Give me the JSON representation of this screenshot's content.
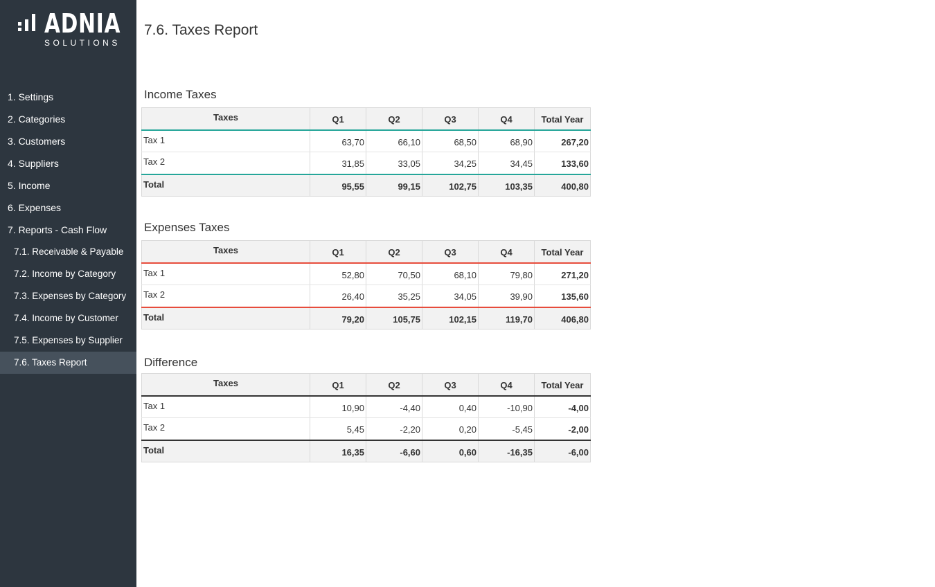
{
  "brand": {
    "name": "ADNIA",
    "subtitle": "SOLUTIONS"
  },
  "nav": [
    {
      "label": "1. Settings",
      "sub": false,
      "active": false
    },
    {
      "label": "2. Categories",
      "sub": false,
      "active": false
    },
    {
      "label": "3. Customers",
      "sub": false,
      "active": false
    },
    {
      "label": "4. Suppliers",
      "sub": false,
      "active": false
    },
    {
      "label": "5. Income",
      "sub": false,
      "active": false
    },
    {
      "label": "6. Expenses",
      "sub": false,
      "active": false
    },
    {
      "label": "7. Reports - Cash Flow",
      "sub": false,
      "active": false
    },
    {
      "label": "7.1. Receivable & Payable",
      "sub": true,
      "active": false
    },
    {
      "label": "7.2. Income by Category",
      "sub": true,
      "active": false
    },
    {
      "label": "7.3. Expenses by Category",
      "sub": true,
      "active": false
    },
    {
      "label": "7.4. Income by Customer",
      "sub": true,
      "active": false
    },
    {
      "label": "7.5. Expenses by Supplier",
      "sub": true,
      "active": false
    },
    {
      "label": "7.6. Taxes Report",
      "sub": true,
      "active": true
    }
  ],
  "page": {
    "title": "7.6. Taxes Report"
  },
  "columns": [
    "Taxes",
    "Q1",
    "Q2",
    "Q3",
    "Q4",
    "Total Year"
  ],
  "income": {
    "title": "Income Taxes",
    "rows": [
      {
        "label": "Tax 1",
        "q1": "63,70",
        "q2": "66,10",
        "q3": "68,50",
        "q4": "68,90",
        "total": "267,20"
      },
      {
        "label": "Tax 2",
        "q1": "31,85",
        "q2": "33,05",
        "q3": "34,25",
        "q4": "34,45",
        "total": "133,60"
      }
    ],
    "total": {
      "label": "Total",
      "q1": "95,55",
      "q2": "99,15",
      "q3": "102,75",
      "q4": "103,35",
      "total": "400,80"
    }
  },
  "expenses": {
    "title": "Expenses Taxes",
    "rows": [
      {
        "label": "Tax 1",
        "q1": "52,80",
        "q2": "70,50",
        "q3": "68,10",
        "q4": "79,80",
        "total": "271,20"
      },
      {
        "label": "Tax 2",
        "q1": "26,40",
        "q2": "35,25",
        "q3": "34,05",
        "q4": "39,90",
        "total": "135,60"
      }
    ],
    "total": {
      "label": "Total",
      "q1": "79,20",
      "q2": "105,75",
      "q3": "102,15",
      "q4": "119,70",
      "total": "406,80"
    }
  },
  "difference": {
    "title": "Difference",
    "rows": [
      {
        "label": "Tax 1",
        "q1": "10,90",
        "q2": "-4,40",
        "q3": "0,40",
        "q4": "-10,90",
        "total": "-4,00"
      },
      {
        "label": "Tax 2",
        "q1": "5,45",
        "q2": "-2,20",
        "q3": "0,20",
        "q4": "-5,45",
        "total": "-2,00"
      }
    ],
    "total": {
      "label": "Total",
      "q1": "16,35",
      "q2": "-6,60",
      "q3": "0,60",
      "q4": "-16,35",
      "total": "-6,00"
    }
  },
  "colors": {
    "sidebar": "#2d363f",
    "sidebar_active": "#46515c",
    "income_accent": "#26a69a",
    "expenses_accent": "#e74c3c",
    "difference_accent": "#333333"
  }
}
